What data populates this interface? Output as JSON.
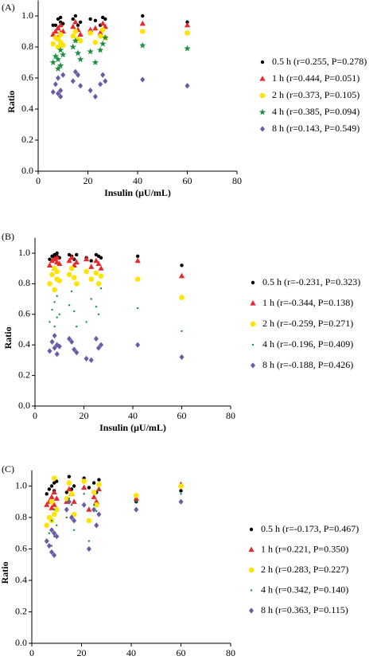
{
  "chart_data": [
    {
      "type": "scatter",
      "title": "(A)",
      "xlabel": "Insulin (μU/mL)",
      "ylabel": "Ratio",
      "xlim": [
        0,
        80
      ],
      "xticks": [
        0,
        20,
        40,
        60,
        80
      ],
      "ylim": [
        0,
        1.1
      ],
      "yticks": [
        {
          "value": 0,
          "label": "0.0"
        },
        {
          "value": 0.2,
          "label": "0.2"
        },
        {
          "value": 0.4,
          "label": "0.4"
        },
        {
          "value": 0.6,
          "label": "0.6"
        },
        {
          "value": 0.8,
          "label": "0.8"
        },
        {
          "value": 1,
          "label": "1.0"
        }
      ],
      "x": [
        6,
        7,
        8,
        8,
        9,
        9,
        10,
        14,
        15,
        16,
        17,
        21,
        23,
        25,
        26,
        27,
        42,
        60
      ],
      "series": [
        {
          "name": "0.5 h (r=0.255, P=0.278)",
          "color": "#000000",
          "marker": "dot",
          "values": [
            0.94,
            0.94,
            0.92,
            0.98,
            0.96,
            0.99,
            0.95,
            0.98,
            1.0,
            0.94,
            0.96,
            0.98,
            0.97,
            0.94,
            0.99,
            0.98,
            1.0,
            0.96
          ]
        },
        {
          "name": "1 h (r=0.444, P=0.051)",
          "color": "#e8282b",
          "marker": "triangle",
          "values": [
            0.88,
            0.9,
            0.86,
            0.92,
            0.89,
            0.94,
            0.9,
            0.93,
            0.96,
            0.91,
            0.88,
            0.91,
            0.92,
            0.89,
            0.95,
            0.93,
            0.95,
            0.94
          ]
        },
        {
          "name": "2 h (r=0.373, P=0.105)",
          "color": "#ffe400",
          "marker": "circle",
          "values": [
            0.82,
            0.86,
            0.8,
            0.85,
            0.88,
            0.83,
            0.81,
            0.87,
            0.9,
            0.85,
            0.84,
            0.89,
            0.83,
            0.87,
            0.91,
            0.86,
            0.9,
            0.89
          ]
        },
        {
          "name": "4 h (r=0.385, P=0.094)",
          "color": "#1a8f3c",
          "marker": "star",
          "values": [
            0.7,
            0.74,
            0.66,
            0.72,
            0.78,
            0.68,
            0.75,
            0.8,
            0.84,
            0.76,
            0.72,
            0.77,
            0.7,
            0.78,
            0.82,
            0.86,
            0.81,
            0.79
          ]
        },
        {
          "name": "8 h (r=0.143, P=0.549)",
          "color": "#6a5aa8",
          "marker": "diamond",
          "values": [
            0.51,
            0.56,
            0.5,
            0.6,
            0.48,
            0.52,
            0.62,
            0.58,
            0.64,
            0.62,
            0.55,
            0.52,
            0.48,
            0.56,
            0.62,
            0.58,
            0.59,
            0.55
          ]
        }
      ]
    },
    {
      "type": "scatter",
      "title": "(B)",
      "xlabel": "Insulin (μU/mL)",
      "ylabel": "Ratio",
      "xlim": [
        0,
        80
      ],
      "xticks": [
        0,
        20,
        40,
        60,
        80
      ],
      "ylim": [
        0,
        1.1
      ],
      "yticks": [
        {
          "value": 0,
          "label": "0.0"
        },
        {
          "value": 0.2,
          "label": "0.2"
        },
        {
          "value": 0.4,
          "label": "0.4"
        },
        {
          "value": 0.6,
          "label": "0.6"
        },
        {
          "value": 0.8,
          "label": "0.8"
        },
        {
          "value": 1,
          "label": "1.0"
        }
      ],
      "x": [
        6,
        7,
        8,
        8,
        9,
        9,
        10,
        14,
        15,
        16,
        17,
        21,
        23,
        25,
        26,
        27,
        42,
        60
      ],
      "series": [
        {
          "name": "0.5 h (r=-0.231, P=0.323)",
          "color": "#000000",
          "marker": "dot",
          "values": [
            0.96,
            0.98,
            0.97,
            0.99,
            0.98,
            1.0,
            0.97,
            0.99,
            0.98,
            0.96,
            0.99,
            0.97,
            0.95,
            0.99,
            0.98,
            0.97,
            0.98,
            0.92
          ]
        },
        {
          "name": "1 h (r=-0.344, P=0.138)",
          "color": "#e8282b",
          "marker": "triangle",
          "values": [
            0.92,
            0.95,
            0.9,
            0.96,
            0.94,
            0.97,
            0.93,
            0.95,
            0.97,
            0.92,
            0.94,
            0.96,
            0.91,
            0.95,
            0.93,
            0.9,
            0.95,
            0.85
          ]
        },
        {
          "name": "2 h (r=-0.259, P=0.271)",
          "color": "#ffe400",
          "marker": "circle",
          "values": [
            0.8,
            0.86,
            0.76,
            0.9,
            0.83,
            0.88,
            0.82,
            0.86,
            0.9,
            0.84,
            0.8,
            0.88,
            0.83,
            0.87,
            0.8,
            0.85,
            0.83,
            0.71
          ]
        },
        {
          "name": "4 h (r=-0.196, P=0.409)",
          "color": "#1a8f3c",
          "marker": "small",
          "values": [
            0.55,
            0.63,
            0.52,
            0.68,
            0.58,
            0.72,
            0.6,
            0.66,
            0.75,
            0.62,
            0.52,
            0.55,
            0.7,
            0.65,
            0.6,
            0.77,
            0.64,
            0.49
          ]
        },
        {
          "name": "8 h (r=-0.188, P=0.426)",
          "color": "#6a5aa8",
          "marker": "diamond",
          "values": [
            0.36,
            0.42,
            0.38,
            0.46,
            0.34,
            0.4,
            0.39,
            0.44,
            0.42,
            0.37,
            0.35,
            0.31,
            0.3,
            0.44,
            0.38,
            0.4,
            0.4,
            0.32
          ]
        }
      ]
    },
    {
      "type": "scatter",
      "title": "(C)",
      "xlabel": "Insulin (μU/mL)",
      "ylabel": "Ratio",
      "xlim": [
        0,
        80
      ],
      "xticks": [
        0,
        20,
        40,
        60,
        80
      ],
      "ylim": [
        0,
        1.1
      ],
      "yticks": [
        {
          "value": 0,
          "label": "0.0"
        },
        {
          "value": 0.2,
          "label": "0.2"
        },
        {
          "value": 0.4,
          "label": "0.4"
        },
        {
          "value": 0.6,
          "label": "0.6"
        },
        {
          "value": 0.8,
          "label": "0.8"
        },
        {
          "value": 1,
          "label": "1.0"
        }
      ],
      "x": [
        6,
        7,
        8,
        8,
        9,
        9,
        10,
        14,
        15,
        16,
        17,
        21,
        23,
        25,
        26,
        27,
        42,
        60
      ],
      "series": [
        {
          "name": "0.5 h (r=-0.173, P=0.467)",
          "color": "#000000",
          "marker": "dot",
          "values": [
            0.95,
            0.98,
            0.9,
            1.0,
            1.02,
            0.97,
            1.03,
            0.96,
            1.06,
            0.98,
            1.0,
            1.05,
            0.99,
            1.02,
            0.96,
            1.04,
            0.9,
            0.97
          ]
        },
        {
          "name": "1 h (r=0.221, P=0.350)",
          "color": "#e8282b",
          "marker": "triangle",
          "values": [
            0.88,
            0.9,
            0.86,
            0.93,
            0.96,
            0.88,
            0.92,
            0.9,
            0.98,
            0.95,
            0.9,
            0.99,
            0.85,
            0.93,
            0.9,
            0.98,
            0.92,
            1.01
          ]
        },
        {
          "name": "2 h (r=0.283, P=0.227)",
          "color": "#ffe400",
          "marker": "circle",
          "values": [
            0.75,
            0.8,
            0.78,
            0.9,
            1.05,
            0.82,
            0.85,
            0.92,
            1.02,
            0.95,
            0.82,
            1.03,
            0.78,
            0.96,
            0.88,
            1.01,
            0.94,
            1.0
          ]
        },
        {
          "name": "4 h (r=0.342, P=0.140)",
          "color": "#1a8f3c",
          "marker": "small",
          "values": [
            0.65,
            0.7,
            0.62,
            0.78,
            0.85,
            0.68,
            0.75,
            0.8,
            0.92,
            0.88,
            0.72,
            0.95,
            0.65,
            0.88,
            0.84,
            0.98,
            0.9,
            0.95
          ]
        },
        {
          "name": "8 h (r=0.363, P=0.115)",
          "color": "#6a5aa8",
          "marker": "diamond",
          "values": [
            0.65,
            0.62,
            0.58,
            0.72,
            0.56,
            0.7,
            0.68,
            0.85,
            0.9,
            0.8,
            0.78,
            0.88,
            0.6,
            0.85,
            0.75,
            0.82,
            0.85,
            0.9
          ]
        }
      ]
    }
  ]
}
